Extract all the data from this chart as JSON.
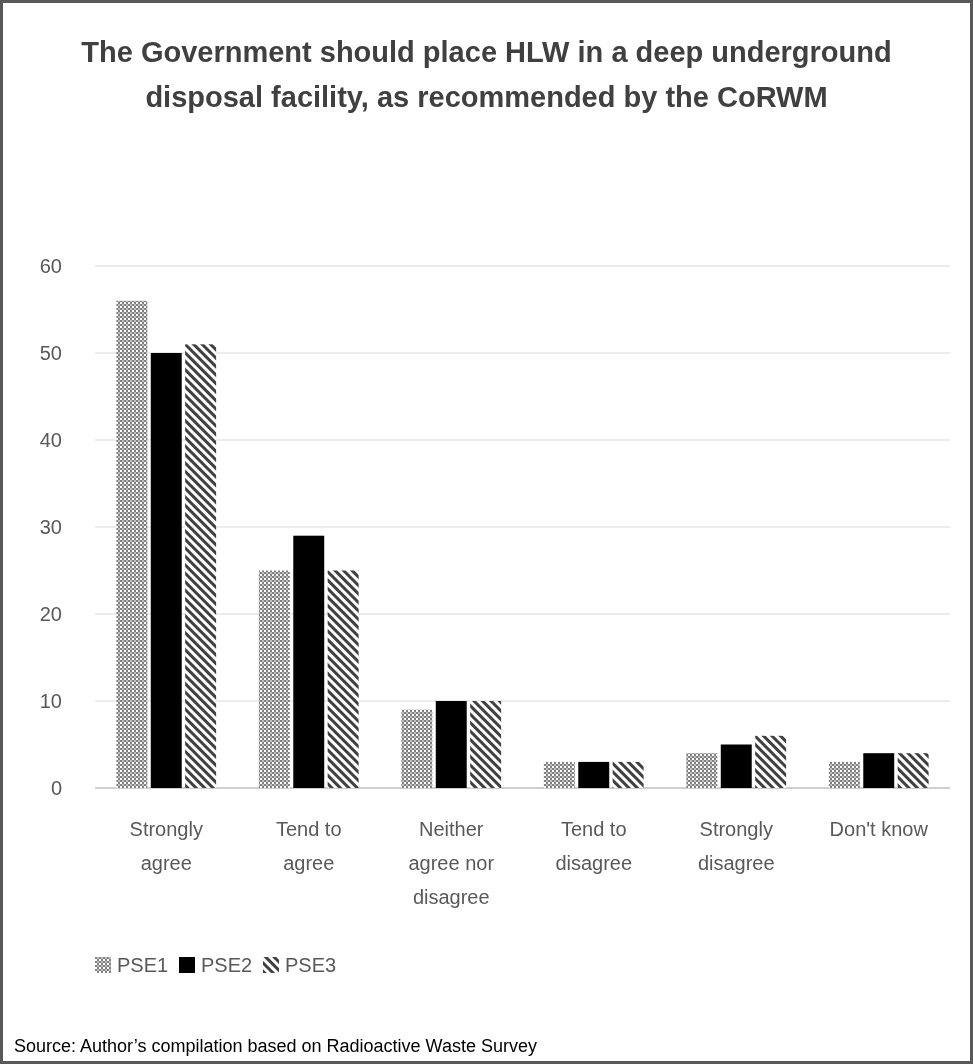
{
  "chart_data": {
    "type": "bar",
    "title": "The Government should place HLW in a deep underground disposal facility, as recommended by the CoRWM",
    "categories": [
      "Strongly agree",
      "Tend to agree",
      "Neither agree nor disagree",
      "Tend to disagree",
      "Strongly disagree",
      "Don't know"
    ],
    "series": [
      {
        "name": "PSE1",
        "color": "#808080",
        "values": [
          56,
          25,
          9,
          3,
          4,
          3
        ]
      },
      {
        "name": "PSE2",
        "color": "#000000",
        "values": [
          50,
          29,
          10,
          3,
          5,
          4
        ]
      },
      {
        "name": "PSE3",
        "color": "#404040",
        "values": [
          51,
          25,
          10,
          3,
          6,
          4
        ]
      }
    ],
    "ylim": [
      0,
      60
    ],
    "yticks": [
      0,
      10,
      20,
      30,
      40,
      50,
      60
    ],
    "grid": "y",
    "legend": "bottom left",
    "annotations": [
      "Source: Author’s compilation based on Radioactive Waste Survey"
    ]
  }
}
